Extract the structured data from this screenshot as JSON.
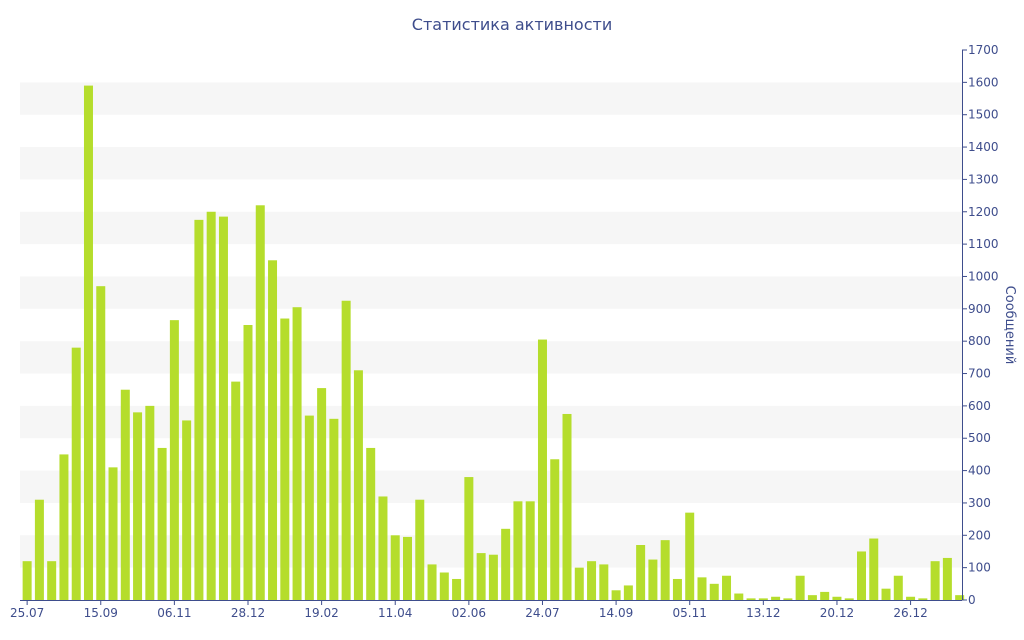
{
  "chart_data": {
    "type": "bar",
    "title": "Статистика активности",
    "ylabel": "Сообщений",
    "ylim": [
      0,
      1700
    ],
    "yticks": [
      0,
      100,
      200,
      300,
      400,
      500,
      600,
      700,
      800,
      900,
      1000,
      1100,
      1200,
      1300,
      1400,
      1500,
      1600,
      1700
    ],
    "x_tick_labels": [
      "25.07",
      "15.09",
      "06.11",
      "28.12",
      "19.02",
      "11.04",
      "02.06",
      "24.07",
      "14.09",
      "05.11",
      "13.12",
      "20.12",
      "26.12"
    ],
    "x_tick_positions": [
      0,
      6,
      12,
      18,
      24,
      30,
      36,
      42,
      48,
      54,
      60,
      66,
      72
    ],
    "y_axis_side": "right",
    "grid": "alternating horizontal bands",
    "bar_color": "#b5dd2c",
    "axis_color": "#3e4d8c",
    "values": [
      120,
      310,
      120,
      450,
      780,
      1590,
      970,
      410,
      650,
      580,
      600,
      470,
      865,
      555,
      1175,
      1200,
      1185,
      675,
      850,
      1220,
      1050,
      870,
      905,
      570,
      655,
      560,
      925,
      710,
      470,
      320,
      200,
      195,
      310,
      110,
      85,
      65,
      380,
      145,
      140,
      220,
      305,
      305,
      805,
      435,
      575,
      100,
      120,
      110,
      30,
      45,
      170,
      125,
      185,
      65,
      270,
      70,
      50,
      75,
      20,
      5,
      5,
      10,
      5,
      75,
      15,
      25,
      10,
      5,
      150,
      190,
      35,
      75,
      10,
      5,
      120,
      130,
      15
    ]
  }
}
